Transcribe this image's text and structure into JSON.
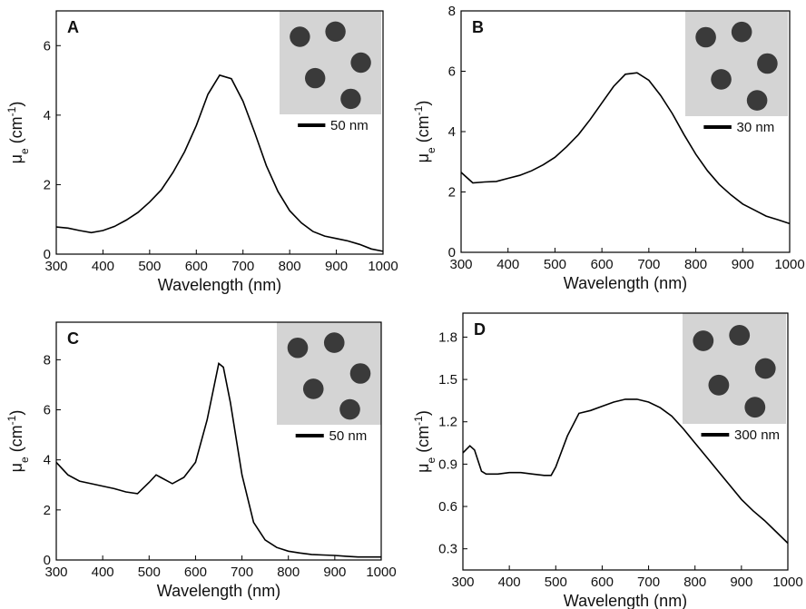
{
  "chart_data": [
    {
      "type": "line",
      "panel_label": "A",
      "inset_label": "50 nm",
      "x_label": "Wavelength (nm)",
      "y_label": [
        "μ",
        "e",
        " (cm",
        "-1",
        ")"
      ],
      "x": [
        300,
        325,
        350,
        375,
        400,
        425,
        450,
        475,
        500,
        525,
        550,
        575,
        600,
        625,
        650,
        675,
        700,
        725,
        750,
        775,
        800,
        825,
        850,
        875,
        900,
        925,
        950,
        975,
        1000
      ],
      "series": [
        {
          "color": "#000000",
          "values": [
            0.78,
            0.75,
            0.68,
            0.62,
            0.68,
            0.8,
            0.98,
            1.2,
            1.5,
            1.85,
            2.35,
            2.95,
            3.7,
            4.6,
            5.15,
            5.05,
            4.4,
            3.5,
            2.55,
            1.8,
            1.25,
            0.9,
            0.65,
            0.52,
            0.45,
            0.38,
            0.28,
            0.15,
            0.08
          ]
        }
      ],
      "xlim": [
        300,
        1000
      ],
      "ylim": [
        0,
        7
      ],
      "xticks": [
        300,
        400,
        500,
        600,
        700,
        800,
        900,
        1000
      ],
      "yticks": [
        0,
        2,
        4,
        6
      ]
    },
    {
      "type": "line",
      "panel_label": "B",
      "inset_label": "30 nm",
      "x_label": "Wavelength (nm)",
      "y_label": [
        "μ",
        "e",
        " (cm",
        "-1",
        ")"
      ],
      "x": [
        300,
        325,
        350,
        375,
        400,
        425,
        450,
        475,
        500,
        525,
        550,
        575,
        600,
        625,
        650,
        675,
        700,
        725,
        750,
        775,
        800,
        825,
        850,
        875,
        900,
        925,
        950,
        975,
        1000
      ],
      "series": [
        {
          "color": "#000000",
          "values": [
            2.65,
            2.3,
            2.33,
            2.35,
            2.45,
            2.55,
            2.7,
            2.9,
            3.15,
            3.5,
            3.9,
            4.4,
            4.95,
            5.5,
            5.9,
            5.95,
            5.7,
            5.2,
            4.6,
            3.9,
            3.25,
            2.7,
            2.25,
            1.9,
            1.6,
            1.4,
            1.2,
            1.08,
            0.95
          ]
        }
      ],
      "xlim": [
        300,
        1000
      ],
      "ylim": [
        0,
        8
      ],
      "xticks": [
        300,
        400,
        500,
        600,
        700,
        800,
        900,
        1000
      ],
      "yticks": [
        0,
        2,
        4,
        6,
        8
      ]
    },
    {
      "type": "line",
      "panel_label": "C",
      "inset_label": "50 nm",
      "x_label": "Wavelength (nm)",
      "y_label": [
        "μ",
        "e",
        " (cm",
        "-1",
        ")"
      ],
      "x": [
        300,
        325,
        350,
        375,
        400,
        425,
        450,
        475,
        500,
        515,
        525,
        550,
        575,
        600,
        625,
        650,
        660,
        675,
        700,
        725,
        750,
        775,
        800,
        825,
        850,
        875,
        900,
        925,
        950,
        975,
        1000
      ],
      "series": [
        {
          "color": "#000000",
          "values": [
            3.9,
            3.4,
            3.15,
            3.05,
            2.95,
            2.85,
            2.72,
            2.65,
            3.1,
            3.4,
            3.3,
            3.05,
            3.3,
            3.9,
            5.6,
            7.85,
            7.7,
            6.3,
            3.4,
            1.5,
            0.8,
            0.5,
            0.35,
            0.28,
            0.22,
            0.2,
            0.18,
            0.15,
            0.12,
            0.12,
            0.12
          ]
        }
      ],
      "xlim": [
        300,
        1000
      ],
      "ylim": [
        0,
        9.5
      ],
      "xticks": [
        300,
        400,
        500,
        600,
        700,
        800,
        900,
        1000
      ],
      "yticks": [
        0,
        2,
        4,
        6,
        8
      ]
    },
    {
      "type": "line",
      "panel_label": "D",
      "inset_label": "300 nm",
      "x_label": "Wavelength (nm)",
      "y_label": [
        "μ",
        "e",
        " (cm",
        "-1",
        ")"
      ],
      "x": [
        300,
        315,
        325,
        340,
        350,
        375,
        400,
        425,
        450,
        475,
        490,
        500,
        525,
        550,
        575,
        600,
        625,
        650,
        675,
        700,
        725,
        750,
        775,
        800,
        825,
        850,
        875,
        900,
        925,
        950,
        975,
        1000
      ],
      "series": [
        {
          "color": "#000000",
          "values": [
            0.98,
            1.03,
            1.0,
            0.85,
            0.83,
            0.83,
            0.84,
            0.84,
            0.83,
            0.82,
            0.82,
            0.88,
            1.1,
            1.26,
            1.28,
            1.31,
            1.34,
            1.36,
            1.36,
            1.34,
            1.3,
            1.24,
            1.15,
            1.05,
            0.95,
            0.85,
            0.75,
            0.65,
            0.57,
            0.5,
            0.42,
            0.34
          ]
        }
      ],
      "xlim": [
        300,
        1000
      ],
      "ylim": [
        0.15,
        1.97
      ],
      "xticks": [
        300,
        400,
        500,
        600,
        700,
        800,
        900,
        1000
      ],
      "yticks": [
        0.3,
        0.6,
        0.9,
        1.2,
        1.5,
        1.8
      ]
    }
  ]
}
